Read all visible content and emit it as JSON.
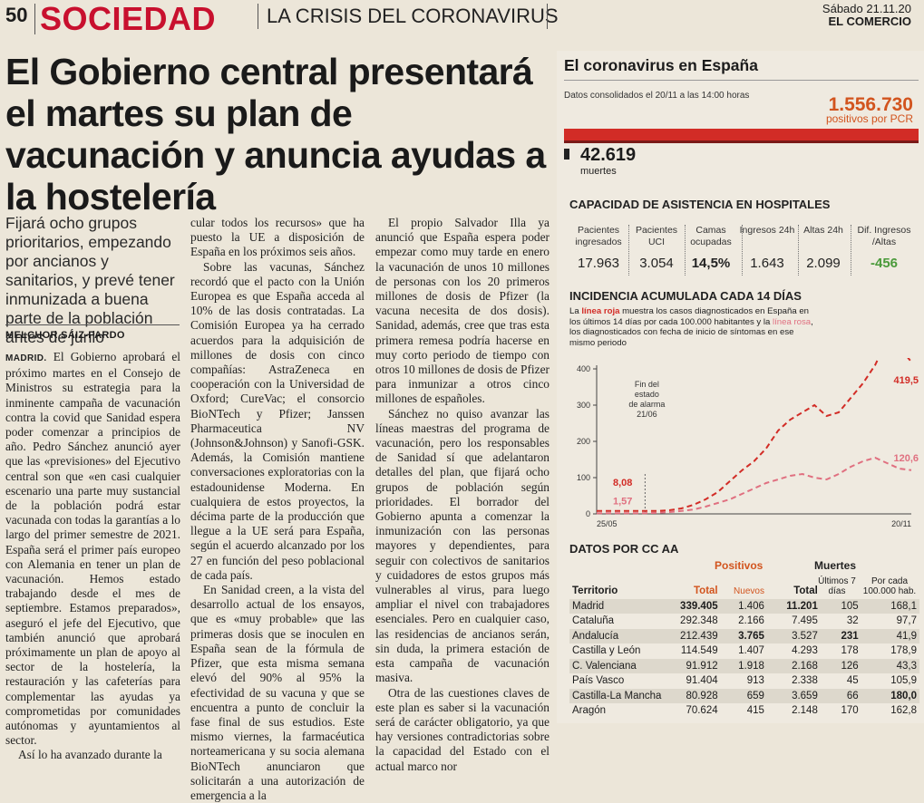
{
  "header": {
    "page_number": "50",
    "section": "SOCIEDAD",
    "topic": "LA CRISIS DEL CORONAVIRUS",
    "date": "Sábado 21.11.20",
    "paper": "EL COMERCIO"
  },
  "article": {
    "headline": "El Gobierno central presentará el martes su plan de vacunación y anuncia ayudas a la hostelería",
    "subhead": "Fijará ocho grupos prioritarios, empezando por ancianos y sanitarios, y prevé tener inmunizada a buena parte de la población antes de junio",
    "byline": "MELCHOR SÁIZ-PARDO",
    "col1": {
      "lead": "MADRID.",
      "p1": " El Gobierno aprobará el próximo martes en el Consejo de Ministros su estrategia para la inminente campaña de vacunación contra la covid que Sanidad espera poder comenzar a principios de año. Pedro Sánchez anunció ayer que las «previsiones» del Ejecutivo central son que «en casi cualquier escenario una parte muy sustancial de la población podrá estar vacunada con todas la garantías a lo largo del primer semestre de 2021. España será el primer país europeo con Alemania en tener un plan de vacunación. Hemos estado trabajando desde el mes de septiembre. Estamos preparados», aseguró el jefe del Ejecutivo, que también anunció que aprobará próximamente un plan de apoyo al sector de la hostelería, la restauración y las cafeterías para complementar las ayudas ya comprometidas por comunidades autónomas y ayuntamientos al sector.",
      "p2": "Así lo ha avanzado durante la"
    },
    "col2": {
      "p1": "cular todos los recursos» que ha puesto la UE a disposición de España en los próximos seis años.",
      "p2": "Sobre las vacunas, Sánchez recordó que el pacto con la Unión Europea es que España acceda al 10% de las dosis contratadas. La Comisión Europea ya ha cerrado acuerdos para la adquisición de millones de dosis con cinco compañías: AstraZeneca en cooperación con la Universidad de Oxford; CureVac; el consorcio BioNTech y Pfizer; Janssen Pharmaceutica NV (Johnson&Johnson) y Sanofi-GSK. Además, la Comisión mantiene conversaciones exploratorias con la estadounidense Moderna. En cualquiera de estos proyectos, la décima parte de la producción que llegue a la UE será para España, según el acuerdo alcanzado por los 27 en función del peso poblacional de cada país.",
      "p3": "En Sanidad creen, a la vista del desarrollo actual de los ensayos, que es «muy probable» que las primeras dosis que se inoculen en España sean de la fórmula de Pfizer, que esta misma semana elevó del 90% al 95% la efectividad de su vacuna y que se encuentra a punto de concluir la fase final de sus estudios. Este mismo viernes, la farmacéutica norteamericana y su socia alemana BioNTech anunciaron que solicitarán a una autorización de emergencia a la"
    },
    "col3": {
      "p1": "El propio Salvador Illa ya anunció que España espera poder empezar como muy tarde en enero la vacunación de unos 10 millones de personas con los 20 primeros millones de dosis de Pfizer (la vacuna necesita de dos dosis). Sanidad, además, cree que tras esta primera remesa podría hacerse en muy corto periodo de tiempo con otros 10 millones de dosis de Pfizer para inmunizar a otros cinco millones de españoles.",
      "p2": "Sánchez no quiso avanzar las líneas maestras del programa de vacunación, pero los responsables de Sanidad sí que adelantaron detalles del plan, que fijará ocho grupos de población según prioridades. El borrador del Gobierno apunta a comenzar la inmunización con las personas mayores y dependientes, para seguir con colectivos de sanitarios y cuidadores de estos grupos más vulnerables al virus, para luego ampliar el nivel con trabajadores esenciales. Pero en cualquier caso, las residencias de ancianos serán, sin duda, la primera estación de esta campaña de vacunación masiva.",
      "p3": "Otra de las cuestiones claves de este plan es saber si la vacunación será de carácter obligatorio, ya que hay versiones contradictorias sobre la capacidad del Estado con el actual marco nor"
    }
  },
  "infographic": {
    "title": "El coronavirus en España",
    "subtitle": "Datos consolidados el 20/11 a las 14:00 horas",
    "positives_value": "1.556.730",
    "positives_label": "positivos por PCR",
    "deaths_value": "42.619",
    "deaths_label": "muertes",
    "hospital_title": "CAPACIDAD DE ASISTENCIA EN HOSPITALES",
    "hospital": [
      {
        "label": "Pacientes ingresados",
        "value": "17.963"
      },
      {
        "label": "Pacientes UCI",
        "value": "3.054"
      },
      {
        "label": "Camas ocupadas",
        "value": "14,5%"
      },
      {
        "label": "Ingresos 24h",
        "value": "1.643"
      },
      {
        "label": "Altas 24h",
        "value": "2.099"
      },
      {
        "label": "Dif. Ingresos /Altas",
        "value": "-456"
      }
    ],
    "chart_title": "INCIDENCIA ACUMULADA CADA 14 DÍAS",
    "chart_desc_1": "La ",
    "chart_desc_red": "línea roja",
    "chart_desc_2": " muestra los casos diagnosticados en España en los últimos 14 días por cada 100.000 habitantes y la ",
    "chart_desc_pink": "línea rosa",
    "chart_desc_3": ", los diagnosticados con fecha de inicio de síntomas en ese mismo periodo",
    "table_title": "DATOS POR CC AA",
    "table_group_pos": "Positivos",
    "table_group_muertes": "Muertes",
    "table_headers": {
      "territorio": "Territorio",
      "total": "Total",
      "nuevos": "Nuevos",
      "total_m": "Total",
      "ultimos": "Últimos 7 días",
      "por_cada": "Por cada 100.000 hab."
    },
    "rows": [
      {
        "name": "Madrid",
        "total": "339.405",
        "nuevos": "1.406",
        "total_m": "11.201",
        "ult": "105",
        "por": "168,1"
      },
      {
        "name": "Cataluña",
        "total": "292.348",
        "nuevos": "2.166",
        "total_m": "7.495",
        "ult": "32",
        "por": "97,7"
      },
      {
        "name": "Andalucía",
        "total": "212.439",
        "nuevos": "3.765",
        "total_m": "3.527",
        "ult": "231",
        "por": "41,9"
      },
      {
        "name": "Castilla y León",
        "total": "114.549",
        "nuevos": "1.407",
        "total_m": "4.293",
        "ult": "178",
        "por": "178,9"
      },
      {
        "name": "C. Valenciana",
        "total": "91.912",
        "nuevos": "1.918",
        "total_m": "2.168",
        "ult": "126",
        "por": "43,3"
      },
      {
        "name": "País Vasco",
        "total": "91.404",
        "nuevos": "913",
        "total_m": "2.338",
        "ult": "45",
        "por": "105,9"
      },
      {
        "name": "Castilla-La Mancha",
        "total": "80.928",
        "nuevos": "659",
        "total_m": "3.659",
        "ult": "66",
        "por": "180,0"
      },
      {
        "name": "Aragón",
        "total": "70.624",
        "nuevos": "415",
        "total_m": "2.148",
        "ult": "170",
        "por": "162,8"
      }
    ]
  },
  "chart_data": {
    "type": "line",
    "title": "INCIDENCIA ACUMULADA CADA 14 DÍAS",
    "x": [
      "25/05",
      "01/06",
      "08/06",
      "15/06",
      "21/06",
      "29/06",
      "06/07",
      "13/07",
      "20/07",
      "27/07",
      "03/08",
      "10/08",
      "17/08",
      "24/08",
      "31/08",
      "07/09",
      "14/09",
      "21/09",
      "28/09",
      "05/10",
      "12/10",
      "19/10",
      "26/10",
      "02/11",
      "09/11",
      "16/11",
      "20/11"
    ],
    "x_tick_labels": [
      "25/05",
      "20/11"
    ],
    "ylim": [
      0,
      400
    ],
    "yticks": [
      0,
      100,
      200,
      300,
      400
    ],
    "series": [
      {
        "values": [
          8.08,
          8,
          8,
          8,
          8,
          8,
          10,
          15,
          25,
          40,
          60,
          90,
          120,
          145,
          180,
          230,
          260,
          280,
          300,
          270,
          280,
          320,
          360,
          410,
          480,
          460,
          419.5
        ],
        "color": "#d22c26",
        "style": "dashed"
      },
      {
        "values": [
          1.57,
          2,
          2,
          2,
          2,
          3,
          5,
          8,
          12,
          20,
          30,
          40,
          55,
          70,
          85,
          95,
          105,
          110,
          100,
          95,
          110,
          130,
          145,
          155,
          140,
          125,
          120.6
        ],
        "color": "#e07080",
        "style": "dashed"
      }
    ],
    "annotations": [
      {
        "text": "Fin del estado de alarma 21/06",
        "x": "21/06"
      },
      {
        "text": "8,08",
        "x": "25/05",
        "color": "#d22c26"
      },
      {
        "text": "1,57",
        "x": "25/05",
        "color": "#e07080"
      },
      {
        "text": "419,5",
        "x": "20/11",
        "color": "#d22c26"
      },
      {
        "text": "120,6",
        "x": "20/11",
        "color": "#e07080"
      }
    ]
  }
}
